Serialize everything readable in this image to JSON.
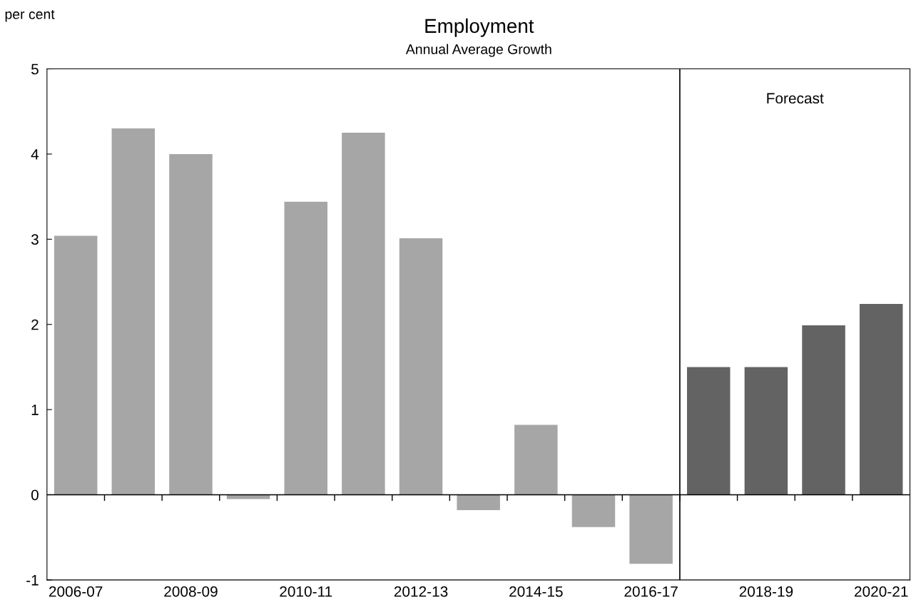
{
  "chart_data": {
    "type": "bar",
    "title": "Employment",
    "subtitle": "Annual Average Growth",
    "ylabel": "per cent",
    "categories": [
      "2006-07",
      null,
      "2008-09",
      null,
      "2010-11",
      null,
      "2012-13",
      null,
      "2014-15",
      null,
      "2016-17",
      null,
      "2018-19",
      null,
      "2020-21"
    ],
    "values": [
      3.04,
      4.3,
      4.0,
      -0.05,
      3.44,
      4.25,
      3.01,
      -0.18,
      0.82,
      -0.38,
      -0.81,
      1.5,
      1.5,
      1.99,
      2.24
    ],
    "colors": [
      "#a6a6a6",
      "#a6a6a6",
      "#a6a6a6",
      "#a6a6a6",
      "#a6a6a6",
      "#a6a6a6",
      "#a6a6a6",
      "#a6a6a6",
      "#a6a6a6",
      "#a6a6a6",
      "#a6a6a6",
      "#636363",
      "#636363",
      "#636363",
      "#636363"
    ],
    "ylim": [
      -1,
      5
    ],
    "yticks": [
      -1,
      0,
      1,
      2,
      3,
      4,
      5
    ],
    "grid": false,
    "legend": false,
    "ref_lines": [
      {
        "axis": "y",
        "value": 0,
        "label": null,
        "color": "#000000"
      }
    ],
    "annotations": [
      "Forecast"
    ]
  }
}
